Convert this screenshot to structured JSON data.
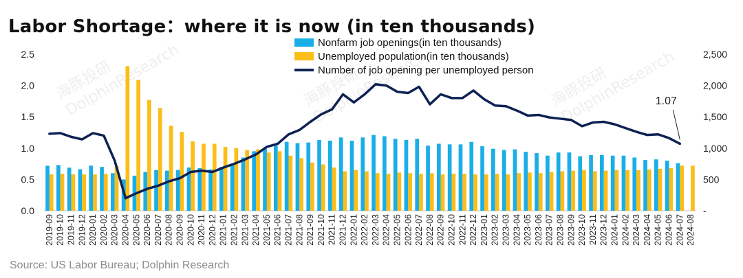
{
  "title": "Labor Shortage：where it is now (in ten thousands)",
  "source": "Source: US Labor Bureau; Dolphin Research",
  "watermark": [
    "海豚投研",
    "DolphinResearch"
  ],
  "chart_data": {
    "type": "bar+line",
    "categories": [
      "2019-09",
      "2019-10",
      "2019-11",
      "2019-12",
      "2020-01",
      "2020-02",
      "2020-03",
      "2020-04",
      "2020-05",
      "2020-06",
      "2020-07",
      "2020-08",
      "2020-09",
      "2020-10",
      "2020-11",
      "2020-12",
      "2021-01",
      "2021-02",
      "2021-03",
      "2021-04",
      "2021-05",
      "2021-06",
      "2021-07",
      "2021-08",
      "2021-09",
      "2021-10",
      "2021-11",
      "2021-12",
      "2022-01",
      "2022-02",
      "2022-03",
      "2022-04",
      "2022-05",
      "2022-06",
      "2022-07",
      "2022-08",
      "2022-09",
      "2022-10",
      "2022-11",
      "2022-12",
      "2023-01",
      "2023-02",
      "2023-03",
      "2023-04",
      "2023-05",
      "2023-06",
      "2023-07",
      "2023-08",
      "2023-09",
      "2023-10",
      "2023-11",
      "2023-12",
      "2024-01",
      "2024-02",
      "2024-03",
      "2024-04",
      "2024-05",
      "2024-06",
      "2024-07",
      "2024-08"
    ],
    "x_tick_labels": [
      "2019-09",
      "2019-10",
      "2019-11",
      "2019-12",
      "2020-01",
      "2020-02",
      "2020-03",
      "2020-04",
      "2020-05",
      "2020-06",
      "2020-07",
      "2020-08",
      "2020-09",
      "2020-10",
      "2020-11",
      "2020-12",
      "2021-01",
      "2021-02",
      "2021-03",
      "2021-04",
      "2021-05",
      "2021-06",
      "2021-07",
      "2021-08",
      "2021-09",
      "2021-10",
      "2021-11",
      "2021-12",
      "2022-01",
      "2022-02",
      "2022-03",
      "2022-04",
      "2022-05",
      "2022-06",
      "2022-07",
      "2022-08",
      "2022-09",
      "2022-10",
      "2022-11",
      "2022-12",
      "2023-01",
      "2023-02",
      "2023-03",
      "2023-04",
      "2023-05",
      "2023-06",
      "2023-07",
      "2023-08",
      "2023-09",
      "2023-10",
      "2023-11",
      "2023-12",
      "2024-01",
      "2024-02",
      "2024-03",
      "2024-04",
      "2024-05",
      "2024-06",
      "2024-07",
      "2024-08"
    ],
    "left_axis": {
      "min": 0,
      "max": 2.5,
      "ticks": [
        "0.0",
        "0.5",
        "1.0",
        "1.5",
        "2.0",
        "2.5"
      ]
    },
    "right_axis": {
      "min": 0,
      "max": 2500,
      "ticks": [
        "-",
        "500",
        "1,000",
        "1,500",
        "2,000",
        "2,500"
      ]
    },
    "series": [
      {
        "name": "Nonfarm job openings(in ten thousands)",
        "type": "bar",
        "axis": "right",
        "color": "#1aaee8",
        "values": [
          718,
          730,
          688,
          662,
          720,
          700,
          600,
          500,
          560,
          620,
          650,
          640,
          650,
          690,
          680,
          660,
          700,
          750,
          850,
          950,
          990,
          1040,
          1100,
          1080,
          1090,
          1130,
          1120,
          1170,
          1120,
          1170,
          1210,
          1190,
          1150,
          1130,
          1150,
          1040,
          1070,
          1060,
          1060,
          1100,
          1030,
          990,
          970,
          980,
          940,
          920,
          880,
          930,
          930,
          870,
          890,
          890,
          880,
          880,
          850,
          810,
          820,
          800,
          760,
          null
        ]
      },
      {
        "name": "Unemployed population(in ten thousands)",
        "type": "bar",
        "axis": "right",
        "color": "#fbbd18",
        "values": [
          580,
          590,
          580,
          580,
          580,
          590,
          710,
          2310,
          2090,
          1770,
          1640,
          1360,
          1260,
          1110,
          1070,
          1070,
          1020,
          1000,
          970,
          980,
          930,
          950,
          880,
          840,
          770,
          740,
          690,
          630,
          650,
          630,
          600,
          590,
          610,
          600,
          590,
          600,
          580,
          590,
          590,
          580,
          580,
          590,
          580,
          600,
          610,
          600,
          620,
          630,
          640,
          650,
          630,
          640,
          650,
          650,
          650,
          660,
          670,
          680,
          720,
          720
        ]
      },
      {
        "name": "Number of job opening per unemployed person",
        "type": "line",
        "axis": "left",
        "color": "#0d2152",
        "values": [
          1.23,
          1.24,
          1.18,
          1.14,
          1.24,
          1.2,
          0.8,
          0.2,
          0.28,
          0.35,
          0.4,
          0.47,
          0.52,
          0.62,
          0.64,
          0.62,
          0.69,
          0.75,
          0.82,
          0.9,
          1.02,
          1.07,
          1.22,
          1.29,
          1.42,
          1.54,
          1.62,
          1.86,
          1.73,
          1.86,
          2.02,
          2.0,
          1.9,
          1.88,
          1.98,
          1.7,
          1.86,
          1.8,
          1.8,
          1.92,
          1.78,
          1.68,
          1.67,
          1.6,
          1.52,
          1.53,
          1.49,
          1.47,
          1.45,
          1.35,
          1.41,
          1.42,
          1.38,
          1.32,
          1.26,
          1.21,
          1.22,
          1.16,
          1.07,
          null
        ]
      }
    ],
    "annotation": {
      "text": "1.07",
      "category": "2024-07"
    },
    "legend_position": "top",
    "grid": false
  }
}
